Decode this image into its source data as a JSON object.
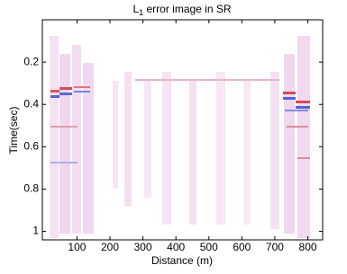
{
  "chart_data": {
    "type": "image",
    "title": {
      "base": "L",
      "subscript": "1",
      "rest": " error image in SR"
    },
    "x_label": "Distance (m)",
    "y_label": "Time(sec)",
    "xlim": [
      -5,
      845
    ],
    "xticks": [
      100,
      200,
      300,
      400,
      500,
      600,
      700,
      800
    ],
    "ylim": [
      0,
      1.04
    ],
    "yticks": [
      0.2,
      0.4,
      0.6,
      0.8,
      1
    ],
    "y_inverted": true
  }
}
